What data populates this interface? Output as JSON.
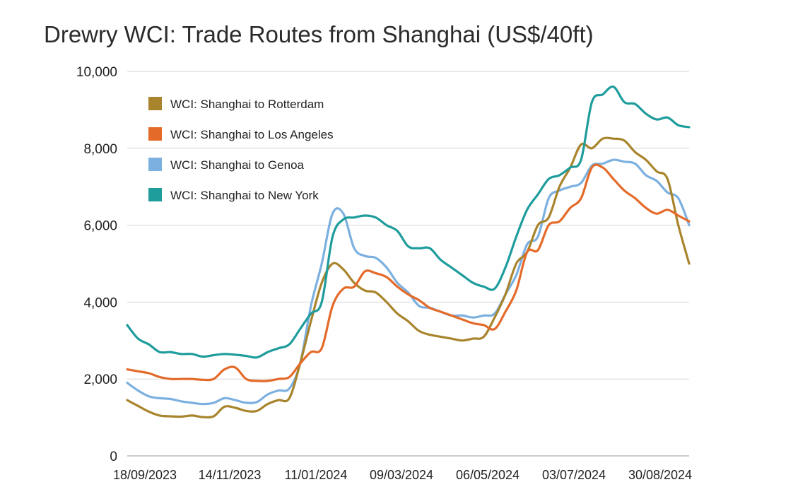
{
  "chart_data": {
    "type": "line",
    "title": "Drewry WCI: Trade Routes from Shanghai (US$/40ft)",
    "xlabel": "",
    "ylabel": "",
    "ylim": [
      0,
      10000
    ],
    "yticks": [
      0,
      2000,
      4000,
      6000,
      8000,
      10000
    ],
    "ytick_labels": [
      "0",
      "2,000",
      "4,000",
      "6,000",
      "8,000",
      "10,000"
    ],
    "xtick_labels": [
      "18/09/2023",
      "14/11/2023",
      "11/01/2024",
      "09/03/2024",
      "06/05/2024",
      "03/07/2024",
      "30/08/2024"
    ],
    "x": [
      "14/09/2023",
      "21/09/2023",
      "28/09/2023",
      "05/10/2023",
      "12/10/2023",
      "19/10/2023",
      "26/10/2023",
      "02/11/2023",
      "09/11/2023",
      "16/11/2023",
      "23/11/2023",
      "30/11/2023",
      "07/12/2023",
      "14/12/2023",
      "21/12/2023",
      "28/12/2023",
      "04/01/2024",
      "11/01/2024",
      "18/01/2024",
      "25/01/2024",
      "01/02/2024",
      "08/02/2024",
      "15/02/2024",
      "22/02/2024",
      "29/02/2024",
      "07/03/2024",
      "14/03/2024",
      "21/03/2024",
      "28/03/2024",
      "04/04/2024",
      "11/04/2024",
      "18/04/2024",
      "25/04/2024",
      "02/05/2024",
      "09/05/2024",
      "16/05/2024",
      "23/05/2024",
      "30/05/2024",
      "06/06/2024",
      "13/06/2024",
      "20/06/2024",
      "27/06/2024",
      "04/07/2024",
      "11/07/2024",
      "18/07/2024",
      "25/07/2024",
      "01/08/2024",
      "08/08/2024",
      "15/08/2024",
      "22/08/2024",
      "29/08/2024",
      "05/09/2024",
      "12/09/2024"
    ],
    "grid": true,
    "legend_position": "top-left",
    "series": [
      {
        "name": "WCI: Shanghai to Rotterdam",
        "color": "#a8842c",
        "values": [
          1450,
          1300,
          1150,
          1050,
          1030,
          1020,
          1050,
          1010,
          1030,
          1280,
          1250,
          1170,
          1170,
          1350,
          1450,
          1500,
          2400,
          3500,
          4500,
          5000,
          4850,
          4500,
          4300,
          4250,
          4000,
          3700,
          3500,
          3250,
          3150,
          3100,
          3050,
          3000,
          3050,
          3100,
          3600,
          4200,
          5000,
          5300,
          6000,
          6200,
          7000,
          7500,
          8100,
          8000,
          8250,
          8250,
          8200,
          7900,
          7700,
          7400,
          7200,
          6000,
          5000
        ]
      },
      {
        "name": "WCI: Shanghai to Los Angeles",
        "color": "#e46a2a",
        "values": [
          2250,
          2200,
          2150,
          2050,
          2000,
          2000,
          2000,
          1980,
          2000,
          2250,
          2300,
          2000,
          1950,
          1950,
          2000,
          2050,
          2400,
          2700,
          2800,
          3900,
          4350,
          4400,
          4800,
          4750,
          4650,
          4400,
          4200,
          4050,
          3850,
          3750,
          3650,
          3550,
          3450,
          3400,
          3300,
          3750,
          4300,
          5300,
          5350,
          6000,
          6100,
          6450,
          6700,
          7500,
          7500,
          7200,
          6900,
          6700,
          6450,
          6300,
          6400,
          6250,
          6100
        ]
      },
      {
        "name": "WCI: Shanghai to Genoa",
        "color": "#7cb0e0",
        "values": [
          1900,
          1700,
          1550,
          1500,
          1480,
          1420,
          1380,
          1350,
          1380,
          1500,
          1450,
          1380,
          1400,
          1600,
          1700,
          1750,
          2400,
          3900,
          5000,
          6300,
          6300,
          5400,
          5200,
          5150,
          4900,
          4500,
          4250,
          3900,
          3850,
          3750,
          3650,
          3650,
          3600,
          3650,
          3700,
          4200,
          4700,
          5500,
          5700,
          6700,
          6900,
          7000,
          7100,
          7550,
          7600,
          7700,
          7650,
          7600,
          7300,
          7150,
          6850,
          6700,
          6000
        ]
      },
      {
        "name": "WCI: Shanghai to New York",
        "color": "#1f9c9c",
        "values": [
          3400,
          3050,
          2900,
          2700,
          2700,
          2650,
          2650,
          2580,
          2620,
          2650,
          2630,
          2600,
          2560,
          2700,
          2800,
          2900,
          3300,
          3700,
          4000,
          5700,
          6150,
          6200,
          6250,
          6200,
          6000,
          5850,
          5450,
          5400,
          5400,
          5100,
          4900,
          4700,
          4500,
          4400,
          4350,
          4900,
          5700,
          6400,
          6800,
          7200,
          7300,
          7500,
          7700,
          9200,
          9400,
          9600,
          9200,
          9150,
          8900,
          8750,
          8800,
          8600,
          8550
        ]
      }
    ]
  }
}
